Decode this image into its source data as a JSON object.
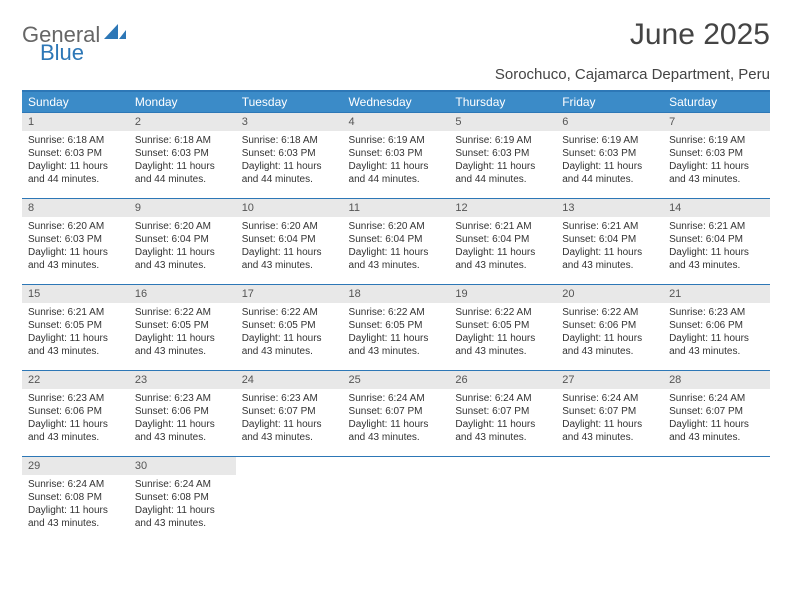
{
  "logo": {
    "text1": "General",
    "text2": "Blue"
  },
  "title": "June 2025",
  "location": "Sorochuco, Cajamarca Department, Peru",
  "colors": {
    "header_bg": "#3b8bc8",
    "border": "#2d77b6",
    "daynum_bg": "#e8e8e8"
  },
  "dayHeaders": [
    "Sunday",
    "Monday",
    "Tuesday",
    "Wednesday",
    "Thursday",
    "Friday",
    "Saturday"
  ],
  "weeks": [
    [
      {
        "n": "1",
        "sr": "Sunrise: 6:18 AM",
        "ss": "Sunset: 6:03 PM",
        "d1": "Daylight: 11 hours",
        "d2": "and 44 minutes."
      },
      {
        "n": "2",
        "sr": "Sunrise: 6:18 AM",
        "ss": "Sunset: 6:03 PM",
        "d1": "Daylight: 11 hours",
        "d2": "and 44 minutes."
      },
      {
        "n": "3",
        "sr": "Sunrise: 6:18 AM",
        "ss": "Sunset: 6:03 PM",
        "d1": "Daylight: 11 hours",
        "d2": "and 44 minutes."
      },
      {
        "n": "4",
        "sr": "Sunrise: 6:19 AM",
        "ss": "Sunset: 6:03 PM",
        "d1": "Daylight: 11 hours",
        "d2": "and 44 minutes."
      },
      {
        "n": "5",
        "sr": "Sunrise: 6:19 AM",
        "ss": "Sunset: 6:03 PM",
        "d1": "Daylight: 11 hours",
        "d2": "and 44 minutes."
      },
      {
        "n": "6",
        "sr": "Sunrise: 6:19 AM",
        "ss": "Sunset: 6:03 PM",
        "d1": "Daylight: 11 hours",
        "d2": "and 44 minutes."
      },
      {
        "n": "7",
        "sr": "Sunrise: 6:19 AM",
        "ss": "Sunset: 6:03 PM",
        "d1": "Daylight: 11 hours",
        "d2": "and 43 minutes."
      }
    ],
    [
      {
        "n": "8",
        "sr": "Sunrise: 6:20 AM",
        "ss": "Sunset: 6:03 PM",
        "d1": "Daylight: 11 hours",
        "d2": "and 43 minutes."
      },
      {
        "n": "9",
        "sr": "Sunrise: 6:20 AM",
        "ss": "Sunset: 6:04 PM",
        "d1": "Daylight: 11 hours",
        "d2": "and 43 minutes."
      },
      {
        "n": "10",
        "sr": "Sunrise: 6:20 AM",
        "ss": "Sunset: 6:04 PM",
        "d1": "Daylight: 11 hours",
        "d2": "and 43 minutes."
      },
      {
        "n": "11",
        "sr": "Sunrise: 6:20 AM",
        "ss": "Sunset: 6:04 PM",
        "d1": "Daylight: 11 hours",
        "d2": "and 43 minutes."
      },
      {
        "n": "12",
        "sr": "Sunrise: 6:21 AM",
        "ss": "Sunset: 6:04 PM",
        "d1": "Daylight: 11 hours",
        "d2": "and 43 minutes."
      },
      {
        "n": "13",
        "sr": "Sunrise: 6:21 AM",
        "ss": "Sunset: 6:04 PM",
        "d1": "Daylight: 11 hours",
        "d2": "and 43 minutes."
      },
      {
        "n": "14",
        "sr": "Sunrise: 6:21 AM",
        "ss": "Sunset: 6:04 PM",
        "d1": "Daylight: 11 hours",
        "d2": "and 43 minutes."
      }
    ],
    [
      {
        "n": "15",
        "sr": "Sunrise: 6:21 AM",
        "ss": "Sunset: 6:05 PM",
        "d1": "Daylight: 11 hours",
        "d2": "and 43 minutes."
      },
      {
        "n": "16",
        "sr": "Sunrise: 6:22 AM",
        "ss": "Sunset: 6:05 PM",
        "d1": "Daylight: 11 hours",
        "d2": "and 43 minutes."
      },
      {
        "n": "17",
        "sr": "Sunrise: 6:22 AM",
        "ss": "Sunset: 6:05 PM",
        "d1": "Daylight: 11 hours",
        "d2": "and 43 minutes."
      },
      {
        "n": "18",
        "sr": "Sunrise: 6:22 AM",
        "ss": "Sunset: 6:05 PM",
        "d1": "Daylight: 11 hours",
        "d2": "and 43 minutes."
      },
      {
        "n": "19",
        "sr": "Sunrise: 6:22 AM",
        "ss": "Sunset: 6:05 PM",
        "d1": "Daylight: 11 hours",
        "d2": "and 43 minutes."
      },
      {
        "n": "20",
        "sr": "Sunrise: 6:22 AM",
        "ss": "Sunset: 6:06 PM",
        "d1": "Daylight: 11 hours",
        "d2": "and 43 minutes."
      },
      {
        "n": "21",
        "sr": "Sunrise: 6:23 AM",
        "ss": "Sunset: 6:06 PM",
        "d1": "Daylight: 11 hours",
        "d2": "and 43 minutes."
      }
    ],
    [
      {
        "n": "22",
        "sr": "Sunrise: 6:23 AM",
        "ss": "Sunset: 6:06 PM",
        "d1": "Daylight: 11 hours",
        "d2": "and 43 minutes."
      },
      {
        "n": "23",
        "sr": "Sunrise: 6:23 AM",
        "ss": "Sunset: 6:06 PM",
        "d1": "Daylight: 11 hours",
        "d2": "and 43 minutes."
      },
      {
        "n": "24",
        "sr": "Sunrise: 6:23 AM",
        "ss": "Sunset: 6:07 PM",
        "d1": "Daylight: 11 hours",
        "d2": "and 43 minutes."
      },
      {
        "n": "25",
        "sr": "Sunrise: 6:24 AM",
        "ss": "Sunset: 6:07 PM",
        "d1": "Daylight: 11 hours",
        "d2": "and 43 minutes."
      },
      {
        "n": "26",
        "sr": "Sunrise: 6:24 AM",
        "ss": "Sunset: 6:07 PM",
        "d1": "Daylight: 11 hours",
        "d2": "and 43 minutes."
      },
      {
        "n": "27",
        "sr": "Sunrise: 6:24 AM",
        "ss": "Sunset: 6:07 PM",
        "d1": "Daylight: 11 hours",
        "d2": "and 43 minutes."
      },
      {
        "n": "28",
        "sr": "Sunrise: 6:24 AM",
        "ss": "Sunset: 6:07 PM",
        "d1": "Daylight: 11 hours",
        "d2": "and 43 minutes."
      }
    ],
    [
      {
        "n": "29",
        "sr": "Sunrise: 6:24 AM",
        "ss": "Sunset: 6:08 PM",
        "d1": "Daylight: 11 hours",
        "d2": "and 43 minutes."
      },
      {
        "n": "30",
        "sr": "Sunrise: 6:24 AM",
        "ss": "Sunset: 6:08 PM",
        "d1": "Daylight: 11 hours",
        "d2": "and 43 minutes."
      },
      {
        "empty": true
      },
      {
        "empty": true
      },
      {
        "empty": true
      },
      {
        "empty": true
      },
      {
        "empty": true
      }
    ]
  ]
}
